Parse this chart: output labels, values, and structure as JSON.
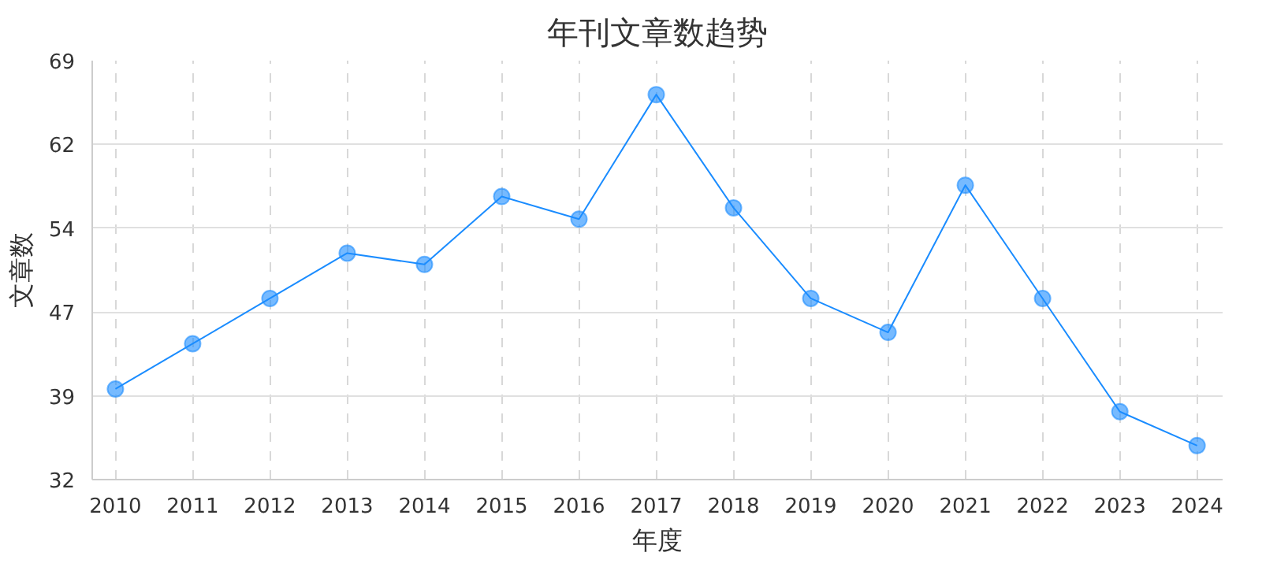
{
  "chart_data": {
    "type": "line",
    "title": "年刊文章数趋势",
    "xlabel": "年度",
    "ylabel": "文章数",
    "x": [
      2010,
      2011,
      2012,
      2013,
      2014,
      2015,
      2016,
      2017,
      2018,
      2019,
      2020,
      2021,
      2022,
      2023,
      2024
    ],
    "series": [
      {
        "color": "#1a8cff",
        "values": [
          40,
          44,
          48,
          52,
          51,
          57,
          55,
          66,
          56,
          48,
          45,
          58,
          48,
          38,
          35
        ]
      }
    ],
    "xlim": [
      2009.7,
      2024.33
    ],
    "xticks": [
      2010,
      2011,
      2012,
      2013,
      2014,
      2015,
      2016,
      2017,
      2018,
      2019,
      2020,
      2021,
      2022,
      2023,
      2024
    ],
    "ylim": [
      32,
      69
    ],
    "yticks": [
      32,
      {
        "value": 39.4,
        "label": "39"
      },
      {
        "value": 46.8,
        "label": "47"
      },
      {
        "value": 54.2,
        "label": "54"
      },
      {
        "value": 61.6,
        "label": "62"
      },
      69
    ],
    "grid": true,
    "marker": "circle",
    "line_style": "solid"
  }
}
